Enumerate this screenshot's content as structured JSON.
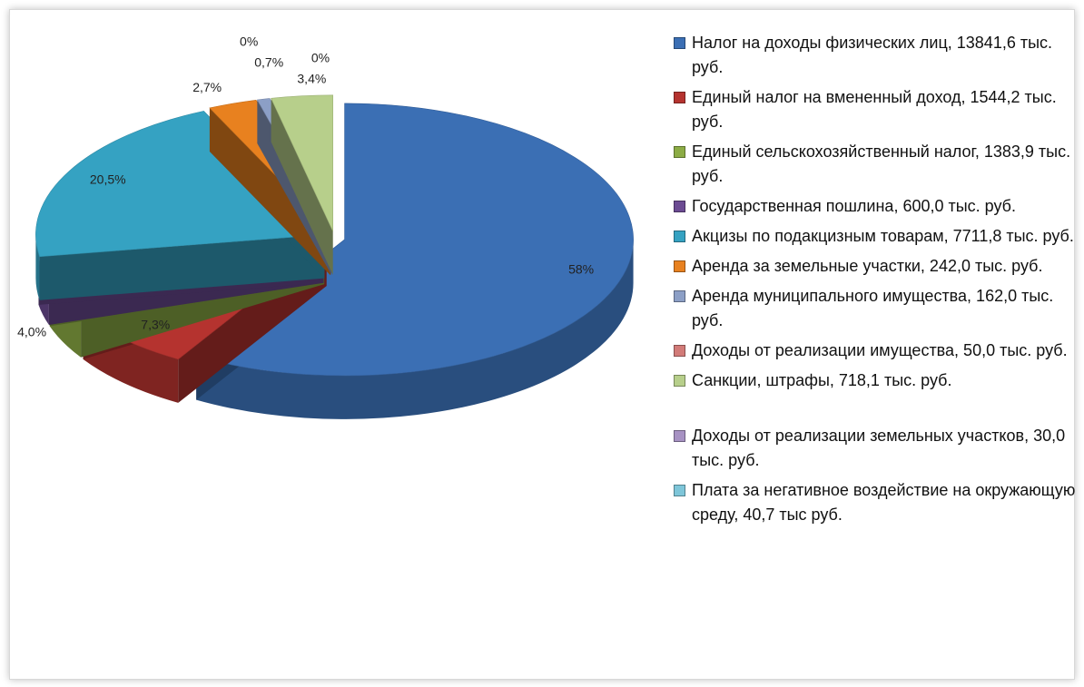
{
  "chart_data": {
    "type": "pie3d",
    "categories": [
      "Налог на доходы физических лиц, 13841,6 тыс. руб.",
      "Единый налог на вмененный доход, 1544,2 тыс. руб.",
      "Единый сельскохозяйственный налог, 1383,9 тыс. руб.",
      "Государственная пошлина, 600,0 тыс. руб.",
      "Акцизы по подакцизным товарам, 7711,8 тыс. руб.",
      "Аренда за земельные участки, 242,0 тыс. руб.",
      "Аренда муниципального имущества, 162,0 тыс. руб.",
      "Доходы от реализации имущества,  50,0 тыс. руб.",
      "Санкции, штрафы, 718,1 тыс. руб.",
      "Доходы от реализации земельных участков, 30,0 тыс. руб.",
      "Плата за негативное воздействие на окружающую среду, 40,7 тыс руб."
    ],
    "values": [
      58,
      7.3,
      4.0,
      2.4,
      20.5,
      2.7,
      0.7,
      0,
      3.4,
      0,
      0
    ],
    "value_labels": [
      "58%",
      "7,3%",
      "4,0%",
      null,
      "20,5%",
      "2,7%",
      "0,7%",
      "0%",
      "3,4%",
      "0%",
      null
    ],
    "colors": [
      "#3b6fb4",
      "#b5332f",
      "#8cac45",
      "#6c4b93",
      "#35a2c2",
      "#e8811f",
      "#8c9fc6",
      "#d27b78",
      "#b7cf8b",
      "#a792c3",
      "#7ec6d9"
    ]
  }
}
